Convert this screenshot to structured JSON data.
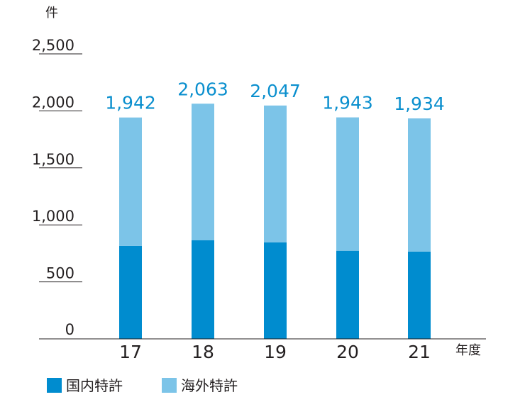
{
  "chart_data": {
    "type": "bar",
    "stacked": true,
    "y_unit_label": "件",
    "x_unit_label": "年度",
    "categories": [
      "17",
      "18",
      "19",
      "20",
      "21"
    ],
    "series": [
      {
        "name": "国内特許",
        "color": "#008ccf",
        "values": [
          815,
          866,
          846,
          773,
          766
        ]
      },
      {
        "name": "海外特許",
        "color": "#7cc4e8",
        "values": [
          1127,
          1197,
          1201,
          1170,
          1168
        ]
      }
    ],
    "totals_display": [
      "1,942",
      "2,063",
      "2,047",
      "1,943",
      "1,934"
    ],
    "total_label_color": "#0a8fce",
    "ylim": [
      0,
      2500
    ],
    "yticks": [
      0,
      500,
      1000,
      1500,
      2000,
      2500
    ],
    "ytick_labels": [
      "0",
      "500",
      "1,000",
      "1,500",
      "2,000",
      "2,500"
    ],
    "grid": "short tick lines at left",
    "legend_position": "bottom-left"
  }
}
